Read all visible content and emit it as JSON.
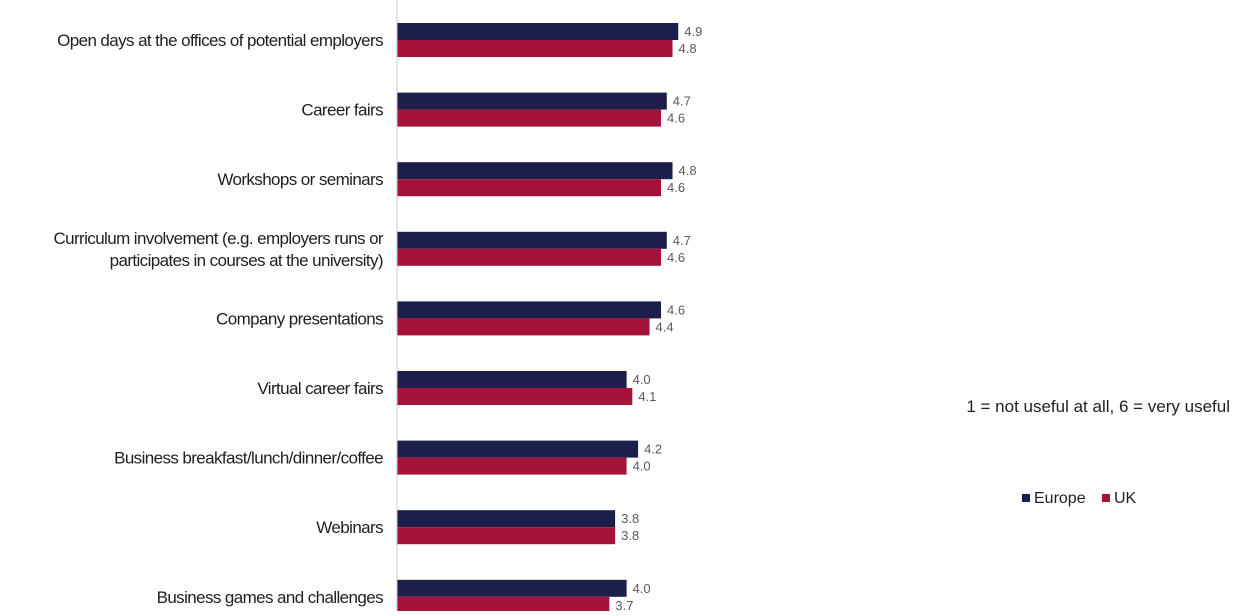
{
  "chart_data": {
    "type": "bar",
    "orientation": "horizontal",
    "categories": [
      [
        "Open days at the offices of potential employers"
      ],
      [
        "Career fairs"
      ],
      [
        "Workshops or seminars"
      ],
      [
        "Curriculum involvement (e.g. employers runs or",
        "participates in courses at the university)"
      ],
      [
        "Company presentations"
      ],
      [
        "Virtual career fairs"
      ],
      [
        "Business breakfast/lunch/dinner/coffee"
      ],
      [
        "Webinars"
      ],
      [
        "Business games and challenges"
      ]
    ],
    "series": [
      {
        "name": "Europe",
        "color": "#1c1f4a",
        "values": [
          4.9,
          4.7,
          4.8,
          4.7,
          4.6,
          4.0,
          4.2,
          3.8,
          4.0
        ]
      },
      {
        "name": "UK",
        "color": "#a5123a",
        "values": [
          4.8,
          4.6,
          4.6,
          4.6,
          4.4,
          4.1,
          4.0,
          3.8,
          3.7
        ]
      }
    ],
    "value_labels": [
      [
        "4.9",
        "4.7",
        "4.8",
        "4.7",
        "4.6",
        "4.0",
        "4.2",
        "3.8",
        "4.0"
      ],
      [
        "4.8",
        "4.6",
        "4.6",
        "4.6",
        "4.4",
        "4.1",
        "4.0",
        "3.8",
        "3.7"
      ]
    ],
    "note": "1 = not useful at all, 6 = very useful",
    "legend_position": "right",
    "axis_line": true,
    "grid": false
  }
}
